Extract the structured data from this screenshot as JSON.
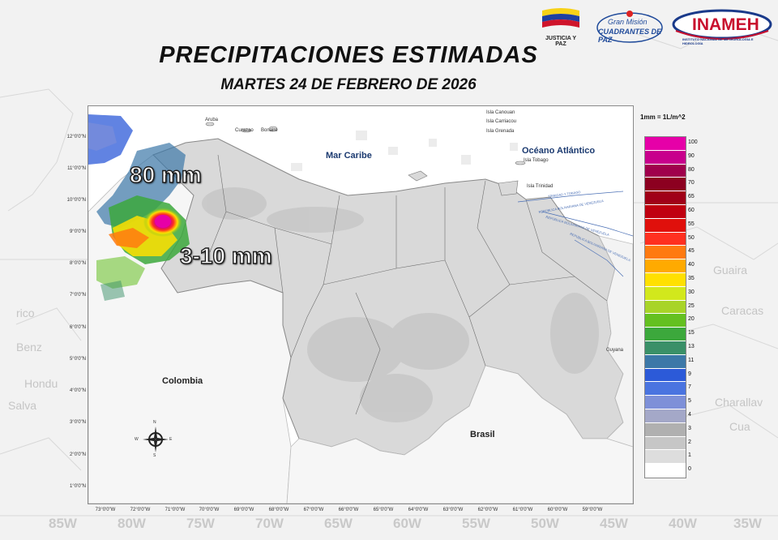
{
  "title": "PRECIPITACIONES ESTIMADAS",
  "subtitle": "MARTES 24 DE FEBRERO DE 2026",
  "logos": {
    "justicia": "JUSTICIA Y PAZ",
    "gran_mision_1": "Gran Misión",
    "gran_mision_2": "CUADRANTES DE PAZ",
    "inameh": "INAMEH",
    "inameh_sub": "INSTITUTO NACIONAL DE METEOROLOGÍA E HIDROLOGÍA"
  },
  "legend": {
    "title": "1mm = 1L/m^2",
    "items": [
      {
        "value": "100",
        "color": "#e600a8"
      },
      {
        "value": "90",
        "color": "#c8008c"
      },
      {
        "value": "80",
        "color": "#a0004c"
      },
      {
        "value": "70",
        "color": "#8c0020"
      },
      {
        "value": "65",
        "color": "#a00018"
      },
      {
        "value": "60",
        "color": "#c00010"
      },
      {
        "value": "55",
        "color": "#e0100c"
      },
      {
        "value": "50",
        "color": "#ff3020"
      },
      {
        "value": "45",
        "color": "#ff7a10"
      },
      {
        "value": "40",
        "color": "#ffaa00"
      },
      {
        "value": "35",
        "color": "#ffe000"
      },
      {
        "value": "30",
        "color": "#d2e81c"
      },
      {
        "value": "25",
        "color": "#a8d428"
      },
      {
        "value": "20",
        "color": "#64c020"
      },
      {
        "value": "15",
        "color": "#3ca83c"
      },
      {
        "value": "13",
        "color": "#3a9068"
      },
      {
        "value": "11",
        "color": "#3c78a8"
      },
      {
        "value": "9",
        "color": "#2c5ad8"
      },
      {
        "value": "7",
        "color": "#4a74e0"
      },
      {
        "value": "5",
        "color": "#7e90d8"
      },
      {
        "value": "4",
        "color": "#a4a8c8"
      },
      {
        "value": "3",
        "color": "#b0b0b0"
      },
      {
        "value": "2",
        "color": "#c6c6c6"
      },
      {
        "value": "1",
        "color": "#dddddd"
      },
      {
        "value": "0",
        "color": "#ffffff"
      }
    ]
  },
  "map": {
    "lat_labels": [
      "12°0'0\"N",
      "11°0'0\"N",
      "10°0'0\"N",
      "9°0'0\"N",
      "8°0'0\"N",
      "7°0'0\"N",
      "6°0'0\"N",
      "5°0'0\"N",
      "4°0'0\"N",
      "3°0'0\"N",
      "2°0'0\"N",
      "1°0'0\"N"
    ],
    "lon_labels": [
      "73°0'0\"W",
      "72°0'0\"W",
      "71°0'0\"W",
      "70°0'0\"W",
      "69°0'0\"W",
      "68°0'0\"W",
      "67°0'0\"W",
      "66°0'0\"W",
      "65°0'0\"W",
      "64°0'0\"W",
      "63°0'0\"W",
      "62°0'0\"W",
      "61°0'0\"W",
      "60°0'0\"W",
      "59°0'0\"W"
    ],
    "places": {
      "colombia": "Colombia",
      "brasil": "Brasil",
      "mar_caribe": "Mar Caribe",
      "oceano": "Océano Atlántico",
      "guyana": "Guyana",
      "aruba": "Aruba",
      "curazao": "Curazao",
      "bonaire": "Bonaire",
      "canouan": "Isla Canouan",
      "carriacou": "Isla Carriacou",
      "grenada": "Isla Grenada",
      "tobago": "Isla Tobago",
      "trinidad": "Isla Trinidad",
      "trinidad_tobago": "TRINIDAD Y TOBAGO",
      "rep_bol_1": "REPÚBLICA BOLIVARIANA DE VENEZUELA",
      "rep_bol_2": "REPÚBLICA BOLIVARIANA DE VENEZUELA",
      "rep_bol_3": "REPÚBLICA BOLIVARIANA DE VENEZUELA"
    },
    "annotations": {
      "max": "80 mm",
      "range": "3-10 mm"
    },
    "compass": {
      "n": "N",
      "s": "S",
      "e": "E",
      "w": "W"
    }
  },
  "background": {
    "degrees": [
      "85W",
      "80W",
      "75W",
      "70W",
      "65W",
      "60W",
      "55W",
      "50W",
      "45W",
      "40W",
      "35W"
    ],
    "labels": [
      "Caracas",
      "Guaira",
      "Hondu",
      "Benz",
      "Salva",
      "Charallav",
      "Cua",
      "rico"
    ]
  }
}
